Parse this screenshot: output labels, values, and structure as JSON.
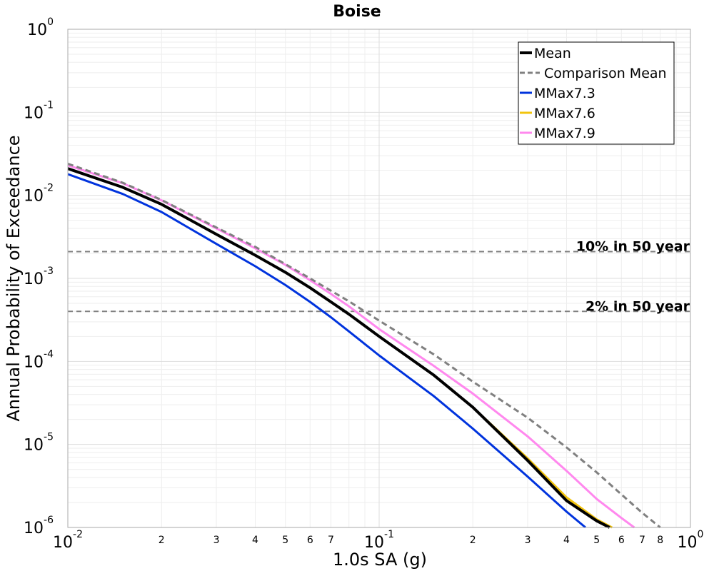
{
  "chart_data": {
    "type": "line",
    "title": "Boise",
    "xlabel": "1.0s SA (g)",
    "ylabel": "Annual Probability of Exceedance",
    "xscale": "log",
    "yscale": "log",
    "xlim": [
      0.01,
      1.0
    ],
    "ylim": [
      1e-06,
      1.0
    ],
    "grid": true,
    "legend_position": "top-right",
    "x_major_ticks": [
      {
        "value": 0.01,
        "base": "10",
        "exp": "-2"
      },
      {
        "value": 0.1,
        "base": "10",
        "exp": "-1"
      },
      {
        "value": 1.0,
        "base": "10",
        "exp": "0"
      }
    ],
    "x_minor_ticks": [
      {
        "value": 0.02,
        "label": "2"
      },
      {
        "value": 0.03,
        "label": "3"
      },
      {
        "value": 0.04,
        "label": "4"
      },
      {
        "value": 0.05,
        "label": "5"
      },
      {
        "value": 0.06,
        "label": "6"
      },
      {
        "value": 0.07,
        "label": "7"
      },
      {
        "value": 0.2,
        "label": "2"
      },
      {
        "value": 0.3,
        "label": "3"
      },
      {
        "value": 0.4,
        "label": "4"
      },
      {
        "value": 0.5,
        "label": "5"
      },
      {
        "value": 0.6,
        "label": "6"
      },
      {
        "value": 0.7,
        "label": "7"
      },
      {
        "value": 0.8,
        "label": "8"
      }
    ],
    "y_major_ticks": [
      {
        "value": 1.0,
        "base": "10",
        "exp": "0"
      },
      {
        "value": 0.1,
        "base": "10",
        "exp": "-1"
      },
      {
        "value": 0.01,
        "base": "10",
        "exp": "-2"
      },
      {
        "value": 0.001,
        "base": "10",
        "exp": "-3"
      },
      {
        "value": 0.0001,
        "base": "10",
        "exp": "-4"
      },
      {
        "value": 1e-05,
        "base": "10",
        "exp": "-5"
      },
      {
        "value": 1e-06,
        "base": "10",
        "exp": "-6"
      }
    ],
    "reference_lines": [
      {
        "label": "10% in 50 year",
        "y": 0.0021,
        "color": "#808080"
      },
      {
        "label": "2% in 50 year",
        "y": 0.0004,
        "color": "#808080"
      }
    ],
    "series": [
      {
        "name": "Mean",
        "color": "#000000",
        "dash": "solid",
        "width": 4,
        "x": [
          0.01,
          0.015,
          0.02,
          0.03,
          0.04,
          0.05,
          0.06,
          0.07,
          0.08,
          0.1,
          0.15,
          0.2,
          0.3,
          0.4,
          0.5,
          0.55
        ],
        "y": [
          0.021,
          0.0125,
          0.0078,
          0.0034,
          0.0019,
          0.00118,
          0.00077,
          0.00052,
          0.00037,
          0.0002,
          6.8e-05,
          2.8e-05,
          6.4e-06,
          2.1e-06,
          1.2e-06,
          1e-06
        ]
      },
      {
        "name": "Comparison Mean",
        "color": "#808080",
        "dash": "dashed",
        "width": 3,
        "x": [
          0.01,
          0.015,
          0.02,
          0.03,
          0.04,
          0.05,
          0.06,
          0.07,
          0.08,
          0.1,
          0.15,
          0.2,
          0.3,
          0.4,
          0.5,
          0.6,
          0.7,
          0.8
        ],
        "y": [
          0.024,
          0.0142,
          0.0088,
          0.0041,
          0.0024,
          0.00148,
          0.001,
          0.00071,
          0.00053,
          0.00031,
          0.000121,
          5.7e-05,
          2.1e-05,
          9.2e-06,
          4.6e-06,
          2.5e-06,
          1.5e-06,
          1e-06
        ]
      },
      {
        "name": "MMax7.3",
        "color": "#0033dd",
        "dash": "solid",
        "width": 3,
        "x": [
          0.01,
          0.015,
          0.02,
          0.03,
          0.04,
          0.05,
          0.06,
          0.07,
          0.08,
          0.1,
          0.15,
          0.2,
          0.3,
          0.4,
          0.46
        ],
        "y": [
          0.018,
          0.0104,
          0.0063,
          0.0026,
          0.0014,
          0.00083,
          0.00052,
          0.00034,
          0.00023,
          0.000118,
          3.8e-05,
          1.55e-05,
          4.1e-06,
          1.55e-06,
          1e-06
        ]
      },
      {
        "name": "MMax7.6",
        "color": "#f2c40e",
        "dash": "solid",
        "width": 3,
        "x": [
          0.01,
          0.015,
          0.02,
          0.03,
          0.04,
          0.05,
          0.06,
          0.07,
          0.08,
          0.1,
          0.15,
          0.2,
          0.3,
          0.4,
          0.5,
          0.56
        ],
        "y": [
          0.021,
          0.0125,
          0.0078,
          0.0034,
          0.0019,
          0.00118,
          0.00077,
          0.00052,
          0.00037,
          0.0002,
          6.8e-05,
          2.8e-05,
          6.8e-06,
          2.3e-06,
          1.25e-06,
          1e-06
        ]
      },
      {
        "name": "MMax7.9",
        "color": "#ff88ee",
        "dash": "solid",
        "width": 3,
        "x": [
          0.01,
          0.015,
          0.02,
          0.03,
          0.04,
          0.05,
          0.06,
          0.07,
          0.08,
          0.1,
          0.15,
          0.2,
          0.3,
          0.4,
          0.5,
          0.6,
          0.66
        ],
        "y": [
          0.023,
          0.014,
          0.0087,
          0.004,
          0.0023,
          0.00145,
          0.00095,
          0.00065,
          0.00046,
          0.000245,
          8.8e-05,
          4.1e-05,
          1.25e-05,
          4.8e-06,
          2.2e-06,
          1.3e-06,
          1e-06
        ]
      }
    ]
  }
}
